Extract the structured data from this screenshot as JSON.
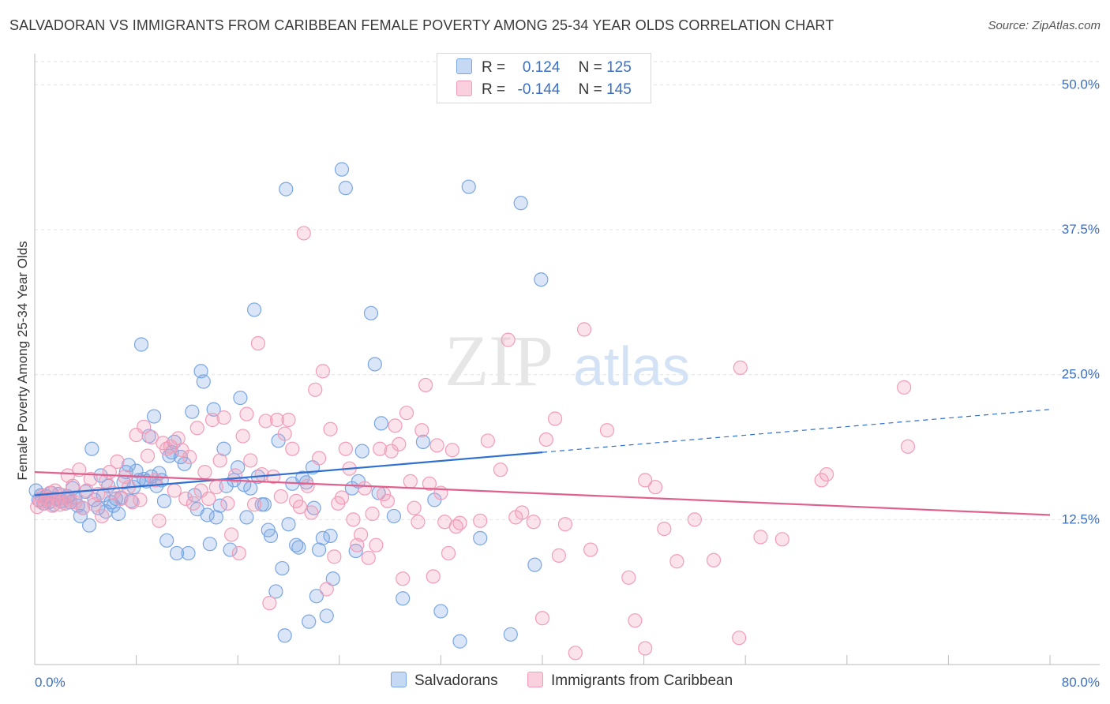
{
  "title": "SALVADORAN VS IMMIGRANTS FROM CARIBBEAN FEMALE POVERTY AMONG 25-34 YEAR OLDS CORRELATION CHART",
  "source": "Source: ZipAtlas.com",
  "watermark": {
    "zip": "ZIP",
    "atlas": "atlas"
  },
  "legend": {
    "r_label": "R =",
    "n_label": "N =",
    "rows": [
      {
        "r": "0.124",
        "n": "125"
      },
      {
        "r": "-0.144",
        "n": "145"
      }
    ]
  },
  "chart_data": {
    "type": "scatter",
    "xlabel": "",
    "ylabel": "Female Poverty Among 25-34 Year Olds",
    "xlim": [
      0,
      80
    ],
    "ylim": [
      0,
      52
    ],
    "x_tick_labels": [
      "0.0%",
      "80.0%"
    ],
    "y_ticks": [
      12.5,
      25.0,
      37.5,
      50.0
    ],
    "y_tick_labels": [
      "12.5%",
      "25.0%",
      "37.5%",
      "50.0%"
    ],
    "grid": true,
    "series": [
      {
        "name": "Salvadorans",
        "color": "#7aa6e3",
        "line_color": "#2e6fd0",
        "trend": {
          "x0": 0,
          "y0": 14.6,
          "x1": 80,
          "y1": 22.0,
          "solid_until": 40
        },
        "points": [
          [
            0.1,
            15.0
          ],
          [
            0.3,
            14.2
          ],
          [
            0.5,
            14.6
          ],
          [
            0.7,
            13.9
          ],
          [
            0.9,
            14.5
          ],
          [
            1.1,
            14.0
          ],
          [
            1.3,
            14.8
          ],
          [
            1.5,
            13.8
          ],
          [
            1.7,
            14.3
          ],
          [
            1.9,
            14.7
          ],
          [
            2.1,
            14.1
          ],
          [
            2.4,
            13.9
          ],
          [
            2.6,
            14.5
          ],
          [
            2.8,
            14.0
          ],
          [
            3.0,
            15.2
          ],
          [
            3.2,
            14.4
          ],
          [
            3.4,
            13.7
          ],
          [
            3.6,
            12.8
          ],
          [
            3.8,
            13.5
          ],
          [
            4.0,
            14.9
          ],
          [
            4.3,
            12.0
          ],
          [
            4.5,
            18.6
          ],
          [
            4.7,
            14.2
          ],
          [
            5.0,
            13.5
          ],
          [
            5.2,
            16.3
          ],
          [
            5.4,
            14.6
          ],
          [
            5.6,
            13.2
          ],
          [
            5.8,
            15.4
          ],
          [
            6.0,
            14.0
          ],
          [
            6.2,
            13.7
          ],
          [
            6.4,
            14.3
          ],
          [
            6.6,
            13.0
          ],
          [
            6.8,
            14.4
          ],
          [
            7.0,
            15.7
          ],
          [
            7.2,
            16.6
          ],
          [
            7.4,
            17.2
          ],
          [
            7.6,
            14.1
          ],
          [
            7.8,
            15.3
          ],
          [
            8.0,
            16.7
          ],
          [
            8.2,
            15.9
          ],
          [
            8.4,
            27.6
          ],
          [
            8.6,
            16.0
          ],
          [
            8.8,
            15.8
          ],
          [
            9.0,
            19.7
          ],
          [
            9.2,
            16.2
          ],
          [
            9.4,
            21.4
          ],
          [
            9.6,
            15.4
          ],
          [
            9.8,
            16.5
          ],
          [
            10.0,
            15.9
          ],
          [
            10.2,
            14.1
          ],
          [
            10.4,
            10.7
          ],
          [
            10.6,
            18.0
          ],
          [
            10.8,
            18.3
          ],
          [
            11.0,
            19.2
          ],
          [
            11.2,
            9.6
          ],
          [
            11.5,
            17.9
          ],
          [
            11.8,
            17.3
          ],
          [
            12.1,
            9.6
          ],
          [
            12.4,
            21.8
          ],
          [
            12.6,
            14.6
          ],
          [
            12.8,
            13.4
          ],
          [
            13.1,
            25.3
          ],
          [
            13.3,
            24.4
          ],
          [
            13.6,
            12.9
          ],
          [
            13.8,
            10.4
          ],
          [
            14.1,
            22.0
          ],
          [
            14.3,
            12.7
          ],
          [
            14.6,
            13.7
          ],
          [
            14.9,
            18.6
          ],
          [
            15.1,
            15.4
          ],
          [
            15.4,
            9.9
          ],
          [
            15.7,
            15.9
          ],
          [
            16.0,
            17.0
          ],
          [
            16.2,
            23.0
          ],
          [
            16.5,
            15.5
          ],
          [
            16.7,
            12.7
          ],
          [
            17.0,
            15.2
          ],
          [
            17.3,
            30.6
          ],
          [
            17.6,
            16.2
          ],
          [
            17.9,
            13.8
          ],
          [
            18.1,
            13.8
          ],
          [
            18.4,
            11.6
          ],
          [
            18.6,
            11.1
          ],
          [
            19.0,
            6.3
          ],
          [
            19.2,
            19.3
          ],
          [
            19.5,
            8.3
          ],
          [
            19.7,
            2.5
          ],
          [
            20.0,
            12.1
          ],
          [
            20.3,
            15.6
          ],
          [
            20.6,
            10.3
          ],
          [
            20.8,
            10.1
          ],
          [
            21.1,
            16.1
          ],
          [
            21.4,
            15.7
          ],
          [
            21.6,
            3.7
          ],
          [
            21.9,
            17.0
          ],
          [
            22.2,
            5.9
          ],
          [
            22.4,
            9.9
          ],
          [
            22.7,
            10.9
          ],
          [
            23.0,
            4.2
          ],
          [
            23.3,
            11.1
          ],
          [
            23.5,
            7.4
          ],
          [
            24.2,
            42.7
          ],
          [
            24.5,
            41.1
          ],
          [
            25.0,
            15.2
          ],
          [
            25.3,
            9.8
          ],
          [
            25.5,
            15.8
          ],
          [
            25.8,
            18.4
          ],
          [
            26.5,
            30.3
          ],
          [
            26.8,
            25.9
          ],
          [
            27.1,
            14.8
          ],
          [
            27.3,
            20.8
          ],
          [
            28.3,
            12.8
          ],
          [
            29.0,
            5.7
          ],
          [
            30.6,
            19.2
          ],
          [
            32.0,
            4.6
          ],
          [
            33.5,
            2.0
          ],
          [
            34.2,
            41.2
          ],
          [
            37.5,
            2.6
          ],
          [
            38.3,
            39.8
          ],
          [
            39.4,
            8.6
          ],
          [
            39.9,
            33.2
          ],
          [
            35.1,
            10.9
          ],
          [
            31.5,
            14.2
          ],
          [
            19.8,
            41.0
          ],
          [
            22.0,
            13.5
          ]
        ]
      },
      {
        "name": "Immigrants from Caribbean",
        "color": "#f29cb8",
        "line_color": "#e0608d",
        "trend": {
          "x0": 0,
          "y0": 16.6,
          "x1": 80,
          "y1": 12.9,
          "solid_until": 80
        },
        "points": [
          [
            0.2,
            13.6
          ],
          [
            0.4,
            14.1
          ],
          [
            0.6,
            14.5
          ],
          [
            0.8,
            13.9
          ],
          [
            1.0,
            14.3
          ],
          [
            1.2,
            14.8
          ],
          [
            1.4,
            13.7
          ],
          [
            1.6,
            15.0
          ],
          [
            1.8,
            14.2
          ],
          [
            2.0,
            13.8
          ],
          [
            2.2,
            14.6
          ],
          [
            2.4,
            13.9
          ],
          [
            2.6,
            16.3
          ],
          [
            2.8,
            14.2
          ],
          [
            3.0,
            15.4
          ],
          [
            3.2,
            14.0
          ],
          [
            3.5,
            16.8
          ],
          [
            3.8,
            13.5
          ],
          [
            4.1,
            15.0
          ],
          [
            4.4,
            16.0
          ],
          [
            4.7,
            13.8
          ],
          [
            5.0,
            14.7
          ],
          [
            5.3,
            12.8
          ],
          [
            5.6,
            15.8
          ],
          [
            5.9,
            16.6
          ],
          [
            6.2,
            14.8
          ],
          [
            6.5,
            17.5
          ],
          [
            6.8,
            14.3
          ],
          [
            7.1,
            16.2
          ],
          [
            7.4,
            15.3
          ],
          [
            7.7,
            14.0
          ],
          [
            8.0,
            19.8
          ],
          [
            8.3,
            14.2
          ],
          [
            8.6,
            20.5
          ],
          [
            8.9,
            18.0
          ],
          [
            9.2,
            19.6
          ],
          [
            9.5,
            15.9
          ],
          [
            9.8,
            12.4
          ],
          [
            10.1,
            19.1
          ],
          [
            10.4,
            18.6
          ],
          [
            10.7,
            18.8
          ],
          [
            11.0,
            15.0
          ],
          [
            11.3,
            19.5
          ],
          [
            11.6,
            18.5
          ],
          [
            11.9,
            14.3
          ],
          [
            12.2,
            17.9
          ],
          [
            12.5,
            13.9
          ],
          [
            12.8,
            20.4
          ],
          [
            13.1,
            15.0
          ],
          [
            13.4,
            16.6
          ],
          [
            13.7,
            14.3
          ],
          [
            14.0,
            21.1
          ],
          [
            14.3,
            15.3
          ],
          [
            14.6,
            17.6
          ],
          [
            14.9,
            21.3
          ],
          [
            15.2,
            13.9
          ],
          [
            15.5,
            11.2
          ],
          [
            15.8,
            16.3
          ],
          [
            16.1,
            9.6
          ],
          [
            16.4,
            19.7
          ],
          [
            16.7,
            21.6
          ],
          [
            17.0,
            17.6
          ],
          [
            17.3,
            13.8
          ],
          [
            17.6,
            27.7
          ],
          [
            17.9,
            16.4
          ],
          [
            18.2,
            21.0
          ],
          [
            18.5,
            5.3
          ],
          [
            18.8,
            16.2
          ],
          [
            19.1,
            21.1
          ],
          [
            19.4,
            14.5
          ],
          [
            19.7,
            19.9
          ],
          [
            20.0,
            21.1
          ],
          [
            20.3,
            18.6
          ],
          [
            20.6,
            14.1
          ],
          [
            20.9,
            13.6
          ],
          [
            21.2,
            37.2
          ],
          [
            21.5,
            15.4
          ],
          [
            21.8,
            13.1
          ],
          [
            22.1,
            23.7
          ],
          [
            22.4,
            17.8
          ],
          [
            22.7,
            25.3
          ],
          [
            23.0,
            6.5
          ],
          [
            23.3,
            20.3
          ],
          [
            23.6,
            9.3
          ],
          [
            23.9,
            13.9
          ],
          [
            24.2,
            14.4
          ],
          [
            24.5,
            18.6
          ],
          [
            24.8,
            16.9
          ],
          [
            25.1,
            12.5
          ],
          [
            25.4,
            10.3
          ],
          [
            25.7,
            11.2
          ],
          [
            26.0,
            15.2
          ],
          [
            26.3,
            9.2
          ],
          [
            26.6,
            13.0
          ],
          [
            26.9,
            10.3
          ],
          [
            27.2,
            18.6
          ],
          [
            27.5,
            14.7
          ],
          [
            27.8,
            14.1
          ],
          [
            28.1,
            18.4
          ],
          [
            28.4,
            20.6
          ],
          [
            28.7,
            19.0
          ],
          [
            29.0,
            7.4
          ],
          [
            29.3,
            21.7
          ],
          [
            29.6,
            15.8
          ],
          [
            29.9,
            13.5
          ],
          [
            30.2,
            12.3
          ],
          [
            30.5,
            20.2
          ],
          [
            30.8,
            24.1
          ],
          [
            31.1,
            15.6
          ],
          [
            31.4,
            7.6
          ],
          [
            31.7,
            18.9
          ],
          [
            32.0,
            14.8
          ],
          [
            32.3,
            12.3
          ],
          [
            32.6,
            9.6
          ],
          [
            32.9,
            18.5
          ],
          [
            33.2,
            11.9
          ],
          [
            33.5,
            12.2
          ],
          [
            35.7,
            19.3
          ],
          [
            35.1,
            12.4
          ],
          [
            36.7,
            16.8
          ],
          [
            37.3,
            28.0
          ],
          [
            37.9,
            12.7
          ],
          [
            38.4,
            13.1
          ],
          [
            39.3,
            12.3
          ],
          [
            40.0,
            4.0
          ],
          [
            40.3,
            19.4
          ],
          [
            41.0,
            21.2
          ],
          [
            41.3,
            9.4
          ],
          [
            41.8,
            12.1
          ],
          [
            42.6,
            1.0
          ],
          [
            43.3,
            28.9
          ],
          [
            43.8,
            9.9
          ],
          [
            45.1,
            20.2
          ],
          [
            46.8,
            7.5
          ],
          [
            47.3,
            3.8
          ],
          [
            48.1,
            15.9
          ],
          [
            48.9,
            15.3
          ],
          [
            48.1,
            1.4
          ],
          [
            49.6,
            11.7
          ],
          [
            50.6,
            8.9
          ],
          [
            52.0,
            12.5
          ],
          [
            53.5,
            9.0
          ],
          [
            55.5,
            2.3
          ],
          [
            55.6,
            25.6
          ],
          [
            57.2,
            11.0
          ],
          [
            58.9,
            10.8
          ],
          [
            62.0,
            15.9
          ],
          [
            62.4,
            16.4
          ],
          [
            68.8,
            18.8
          ],
          [
            68.5,
            23.9
          ]
        ]
      }
    ]
  }
}
